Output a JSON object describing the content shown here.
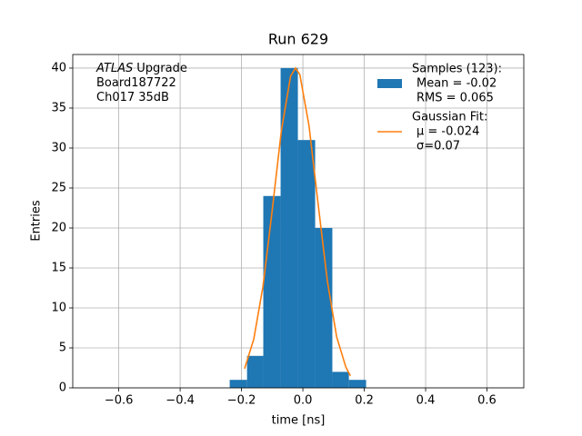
{
  "chart_data": {
    "type": "histogram",
    "title": "Run 629",
    "xlabel": "time [ns]",
    "ylabel": "Entries",
    "xlim": [
      -0.75,
      0.72
    ],
    "ylim": [
      0,
      41.7
    ],
    "xticks": [
      {
        "value": -0.6,
        "label": "−0.6"
      },
      {
        "value": -0.4,
        "label": "−0.4"
      },
      {
        "value": -0.2,
        "label": "−0.2"
      },
      {
        "value": 0,
        "label": "0.0"
      },
      {
        "value": 0.2,
        "label": "0.2"
      },
      {
        "value": 0.4,
        "label": "0.4"
      },
      {
        "value": 0.6,
        "label": "0.6"
      }
    ],
    "yticks": [
      0,
      5,
      10,
      15,
      20,
      25,
      30,
      35,
      40
    ],
    "grid": true,
    "legend_position": "upper right",
    "annotation": [
      [
        "ATLAS",
        "Upgrade"
      ],
      [
        "Board187722"
      ],
      [
        "Ch017 35dB"
      ]
    ],
    "series": [
      {
        "type": "histogram",
        "name": [
          "Samples (123):",
          "Mean = -0.02",
          "RMS = 0.065"
        ],
        "color": "#1f77b4",
        "bins": [
          -0.2385,
          -0.182,
          -0.129,
          -0.0726,
          -0.0163,
          0.04,
          0.096,
          0.15,
          0.206
        ],
        "values": [
          1,
          4,
          24,
          40,
          31,
          20,
          2,
          1
        ]
      },
      {
        "type": "line",
        "name": [
          "Gaussian Fit:",
          "μ = -0.024",
          "σ=0.07"
        ],
        "color": "#ff7f0e",
        "x": [
          -0.19,
          -0.16,
          -0.13,
          -0.1,
          -0.07,
          -0.04,
          -0.024,
          -0.01,
          0.02,
          0.05,
          0.08,
          0.11,
          0.14,
          0.155
        ],
        "values": [
          2.4,
          6.1,
          12.7,
          22.2,
          32.2,
          39.0,
          40,
          39.2,
          32.8,
          22.9,
          13.3,
          6.4,
          2.6,
          1.5
        ]
      }
    ]
  }
}
